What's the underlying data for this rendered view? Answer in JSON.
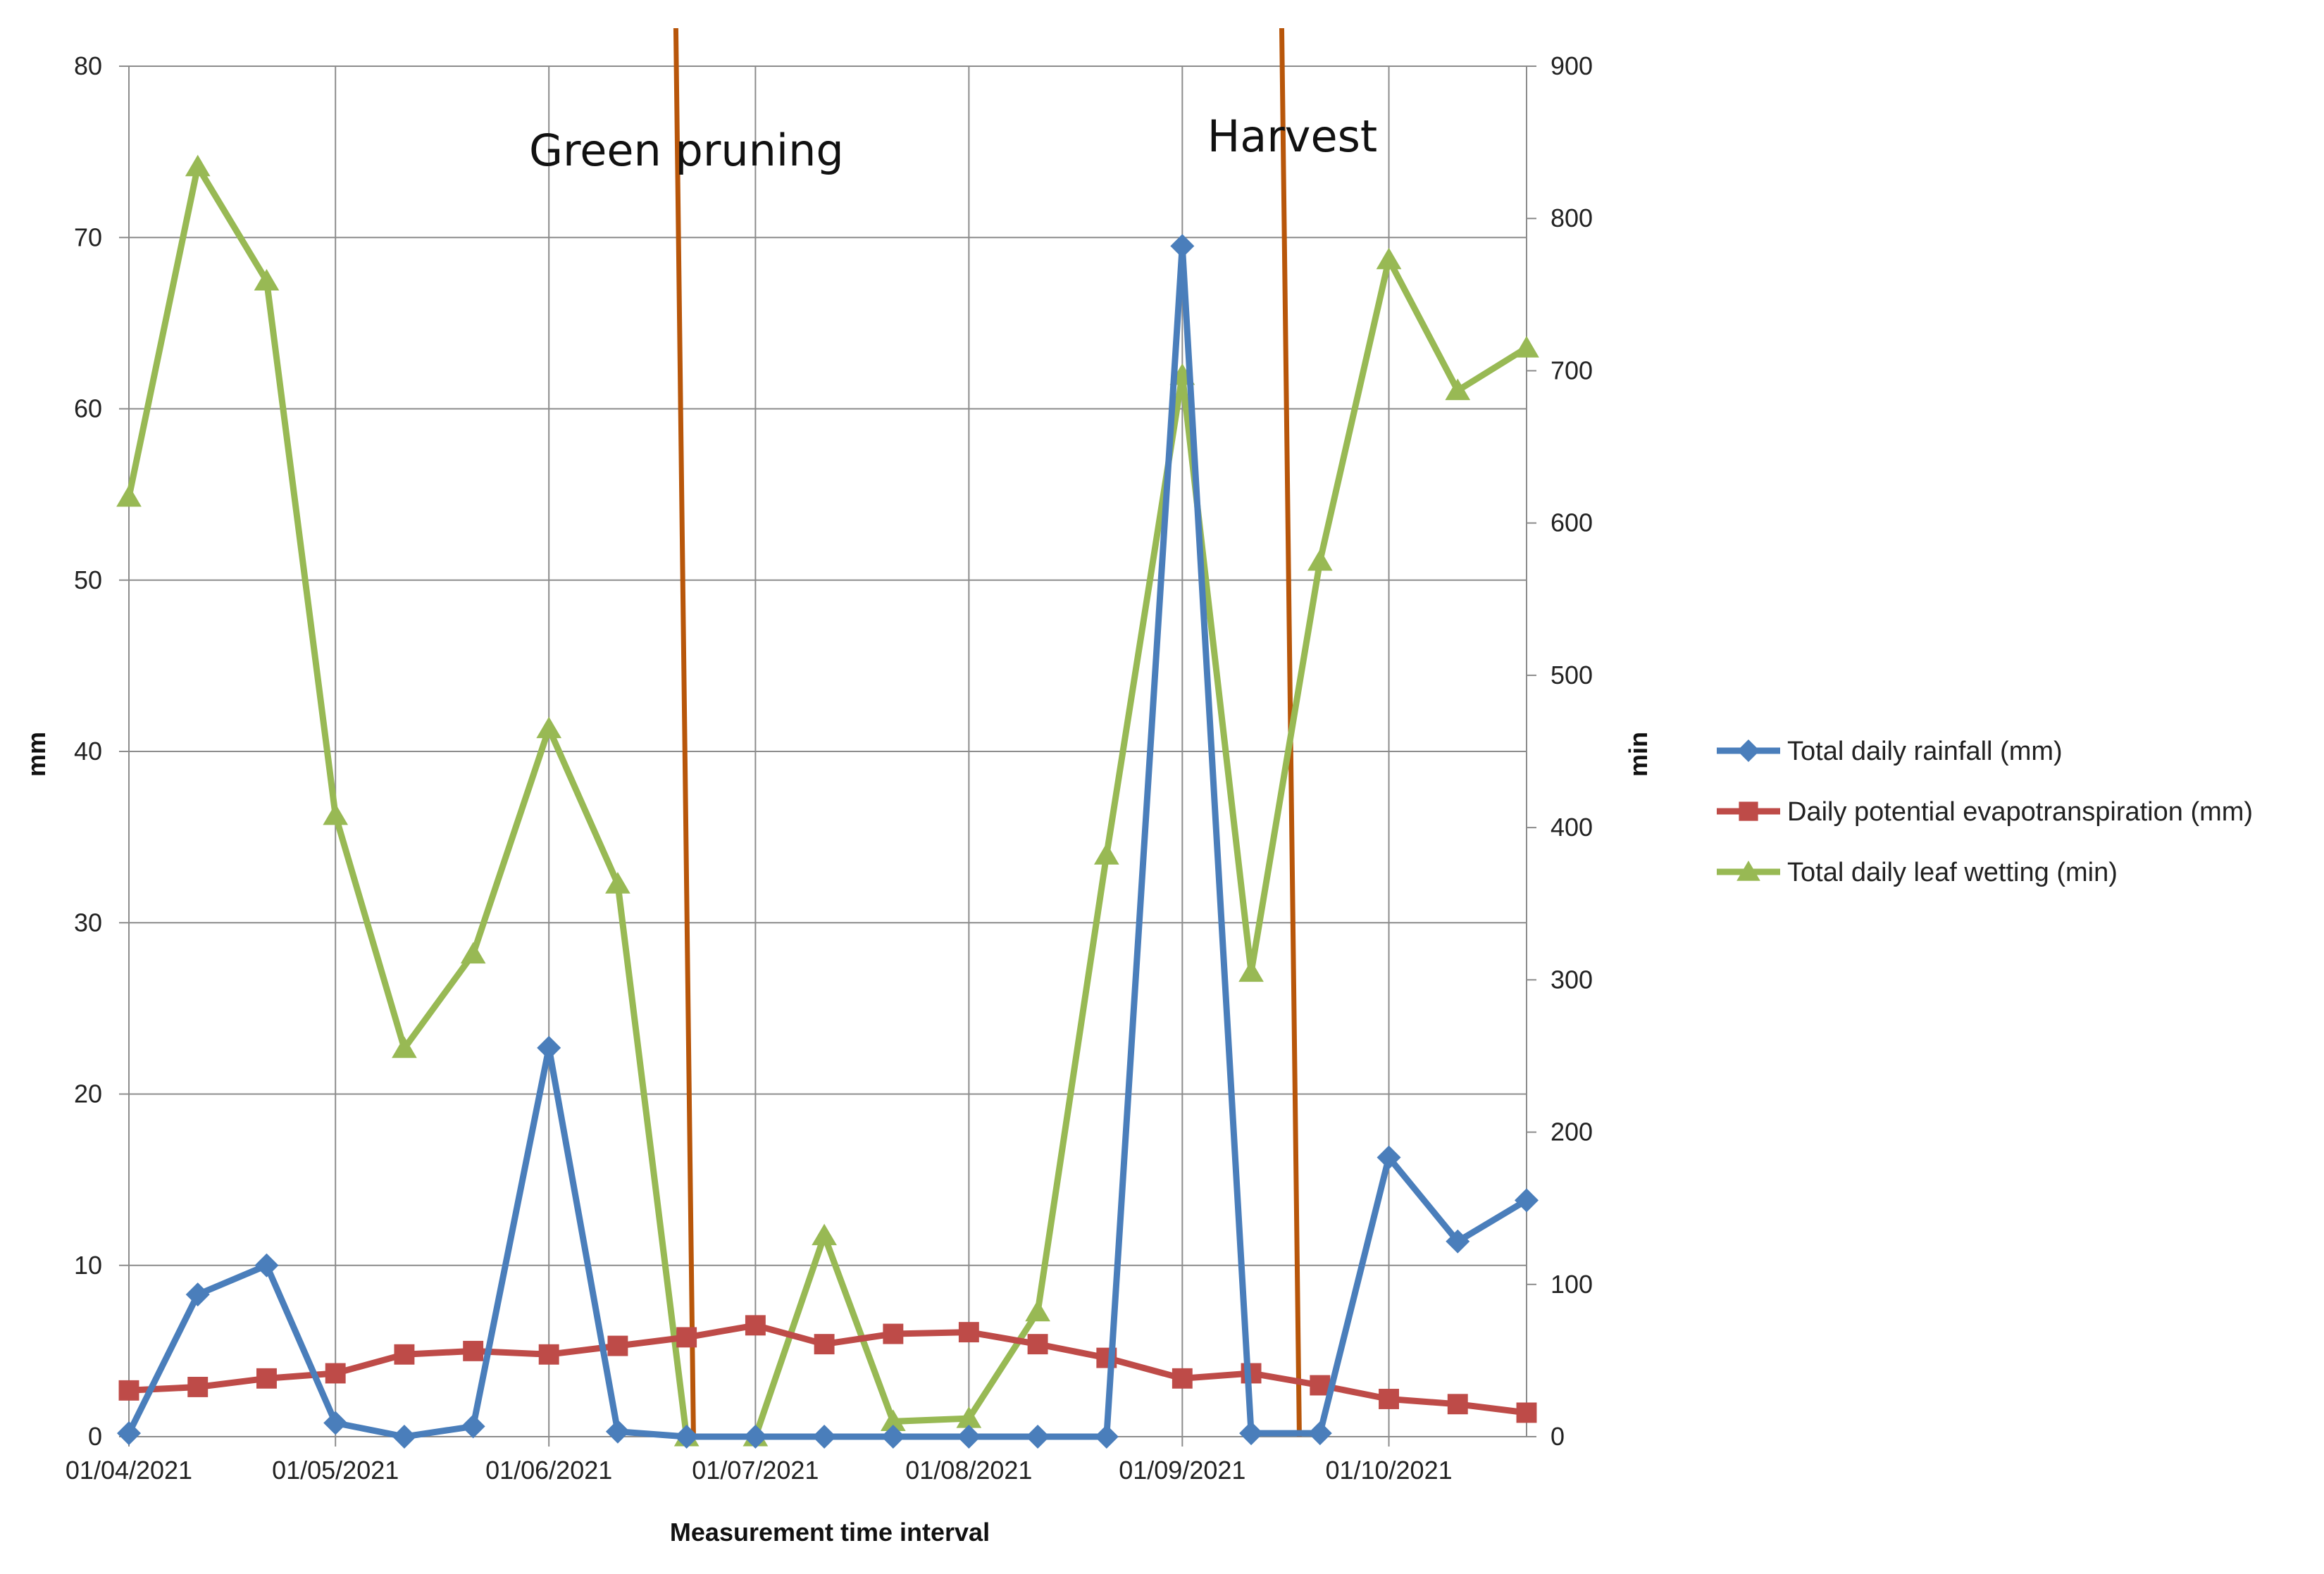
{
  "chart_data": {
    "type": "line",
    "title": "",
    "xlabel": "Measurement time interval",
    "ylabel": "mm",
    "y2label": "min",
    "x_tick_labels": [
      "01/04/2021",
      "01/05/2021",
      "01/06/2021",
      "01/07/2021",
      "01/08/2021",
      "01/09/2021",
      "01/10/2021"
    ],
    "x_tick_dates": [
      "2021-04-01",
      "2021-05-01",
      "2021-06-01",
      "2021-07-01",
      "2021-08-01",
      "2021-09-01",
      "2021-10-01"
    ],
    "x_range": [
      "2021-04-01",
      "2021-10-21"
    ],
    "ylim": [
      0,
      80
    ],
    "y_ticks": [
      "0",
      "10",
      "20",
      "30",
      "40",
      "50",
      "60",
      "70",
      "80"
    ],
    "y2lim": [
      0,
      900
    ],
    "y2_ticks": [
      "0",
      "100",
      "200",
      "300",
      "400",
      "500",
      "600",
      "700",
      "800",
      "900"
    ],
    "grid": true,
    "legend_position": "right",
    "x_dates": [
      "2021-04-01",
      "2021-04-11",
      "2021-04-21",
      "2021-05-01",
      "2021-05-11",
      "2021-05-21",
      "2021-06-01",
      "2021-06-11",
      "2021-06-21",
      "2021-07-01",
      "2021-07-11",
      "2021-07-21",
      "2021-08-01",
      "2021-08-11",
      "2021-08-21",
      "2021-09-01",
      "2021-09-11",
      "2021-09-21",
      "2021-10-01",
      "2021-10-11",
      "2021-10-21"
    ],
    "series": [
      {
        "name": "Total daily rainfall (mm)",
        "axis": "left",
        "color": "#4a7ebb",
        "marker": "diamond",
        "values": [
          0.2,
          8.3,
          10.0,
          0.8,
          0.0,
          0.6,
          22.7,
          0.3,
          0.0,
          0.0,
          0.0,
          0.0,
          0.0,
          0.0,
          0.0,
          69.5,
          0.2,
          0.2,
          16.3,
          11.4,
          13.8
        ]
      },
      {
        "name": "Daily potential evapotranspiration (mm)",
        "axis": "left",
        "color": "#be4b48",
        "marker": "square",
        "values": [
          2.7,
          2.9,
          3.4,
          3.7,
          4.8,
          5.0,
          4.8,
          5.3,
          5.8,
          6.5,
          5.4,
          6.0,
          6.1,
          5.4,
          4.6,
          3.4,
          3.7,
          3.0,
          2.2,
          1.9,
          1.4
        ]
      },
      {
        "name": "Total daily leaf wetting (min)",
        "axis": "right",
        "color": "#98b954",
        "marker": "triangle",
        "values": [
          617,
          834,
          759,
          408,
          255,
          317,
          465,
          363,
          0,
          0,
          132,
          10,
          12,
          82,
          382,
          697,
          305,
          575,
          773,
          687,
          715
        ]
      }
    ],
    "annotations": [
      {
        "text": "Green pruning",
        "date": "2021-06-22",
        "color": "#b8560a"
      },
      {
        "text": "Harvest",
        "date": "2021-09-18",
        "color": "#b8560a"
      }
    ]
  }
}
